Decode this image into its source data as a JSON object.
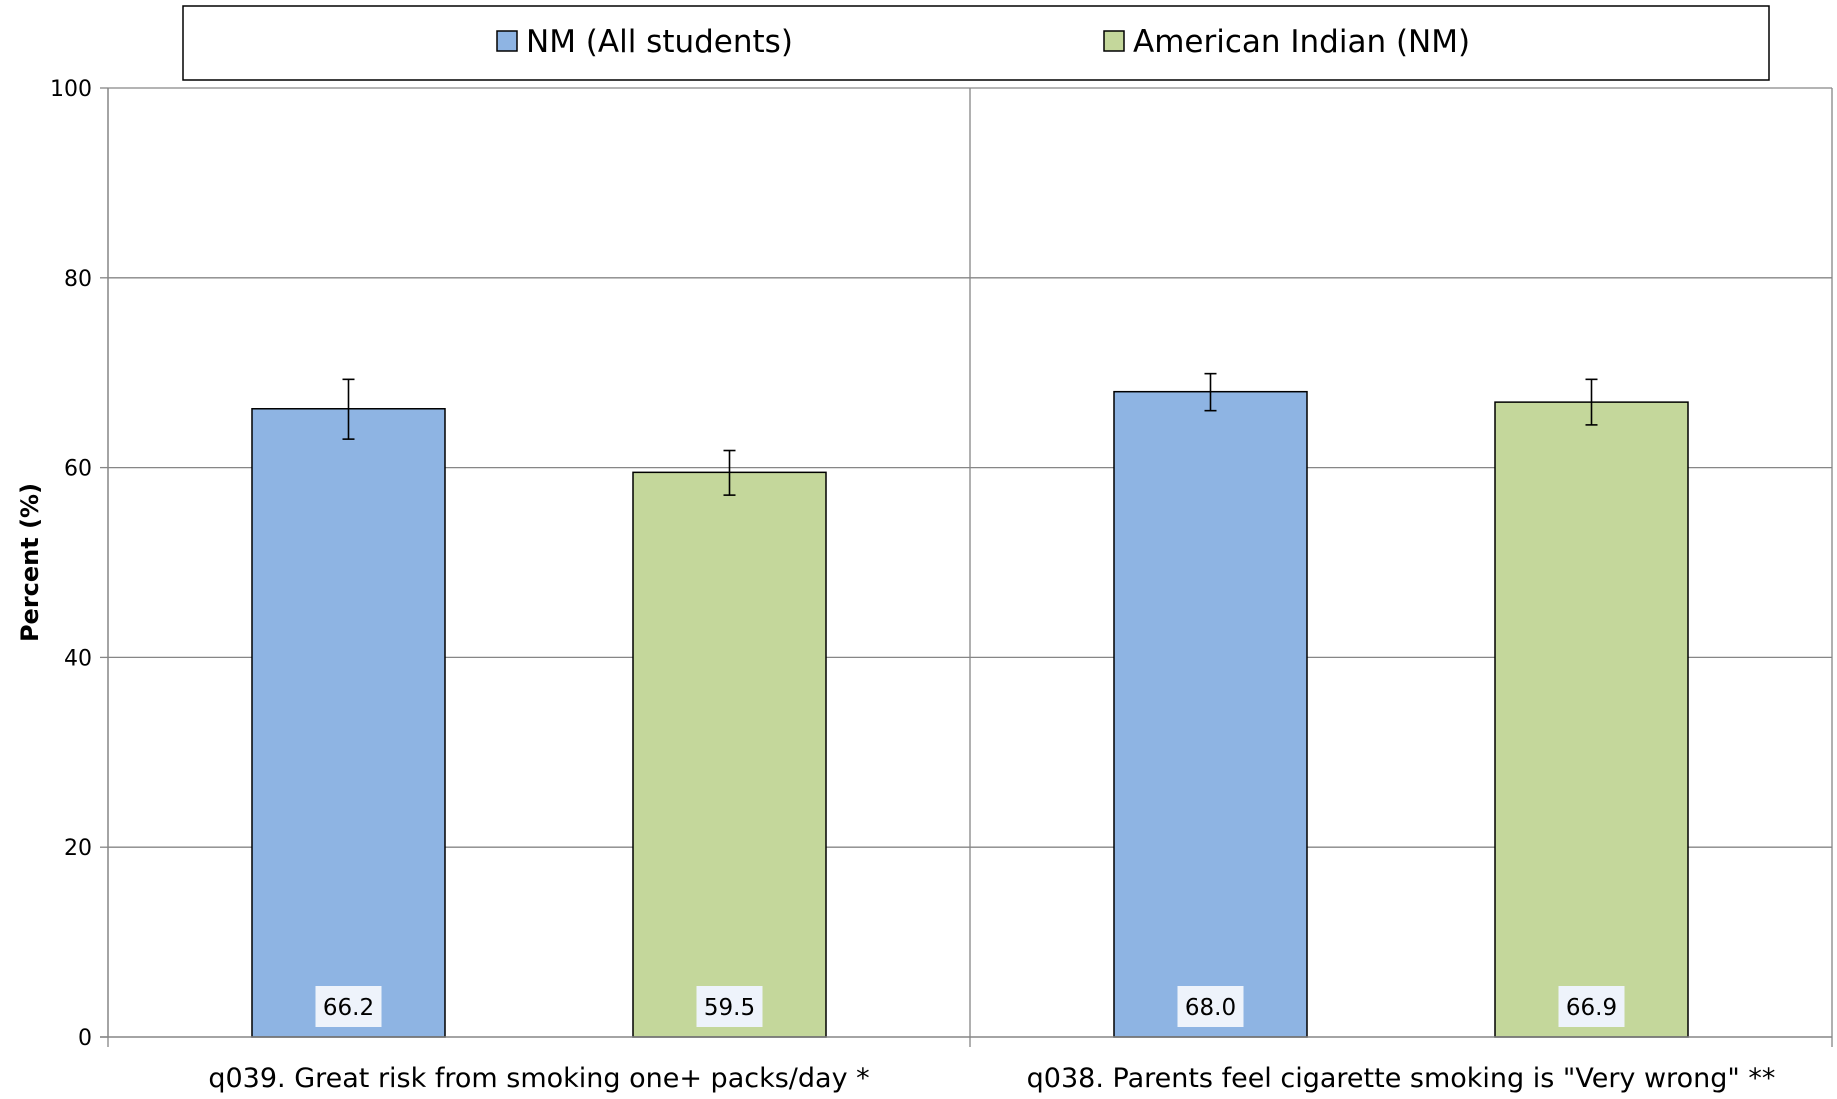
{
  "chart_data": {
    "type": "bar",
    "title": "",
    "ylabel": "Percent (%)",
    "xlabel": "",
    "ylim": [
      0,
      100
    ],
    "yticks": [
      0,
      20,
      40,
      60,
      80,
      100
    ],
    "grid": true,
    "legend_position": "top",
    "categories": [
      "q039. Great risk from smoking one+ packs/day *",
      "q038. Parents feel cigarette smoking is \"Very wrong\" **"
    ],
    "series": [
      {
        "name": "NM (All students)",
        "color": "#8EB4E3",
        "values": [
          66.2,
          68.0
        ],
        "labels": [
          "66.2",
          "68.0"
        ],
        "error_low": [
          63.0,
          66.0
        ],
        "error_high": [
          69.3,
          69.9
        ]
      },
      {
        "name": "American Indian (NM)",
        "color": "#C4D79B",
        "values": [
          59.5,
          66.9
        ],
        "labels": [
          "59.5",
          "66.9"
        ],
        "error_low": [
          57.1,
          64.5
        ],
        "error_high": [
          61.8,
          69.3
        ]
      }
    ]
  }
}
